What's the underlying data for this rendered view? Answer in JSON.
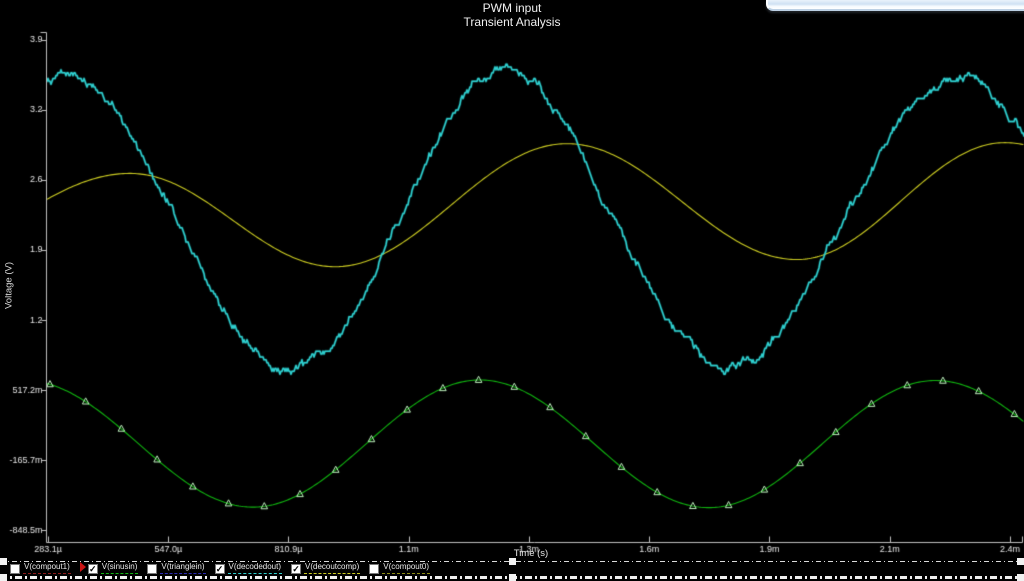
{
  "window": {
    "background": "#000000",
    "overlay_window": {
      "visible": true,
      "description": "bottom edge of an overlapping light-blue window, top-right corner"
    }
  },
  "chart_data": {
    "type": "line",
    "title": "PWM input",
    "subtitle": "Transient Analysis",
    "xlabel": "Time (s)",
    "ylabel": "Voltage (V)",
    "grid": false,
    "background": "#000000",
    "axis_color": "#c0c0c0",
    "tick_text_color": "#e6e6e6",
    "x_range_us": [
      280.9,
      2425.4
    ],
    "y_range_v": [
      -0.95,
      4.0
    ],
    "x_ticks": [
      {
        "t_us": 283.1,
        "label": "283.1µ"
      },
      {
        "t_us": 547.0,
        "label": "547.0µ"
      },
      {
        "t_us": 810.9,
        "label": "810.9µ"
      },
      {
        "t_us": 1074.9,
        "label": "1.1m"
      },
      {
        "t_us": 1338.8,
        "label": "1.3m"
      },
      {
        "t_us": 1602.8,
        "label": "1.6m"
      },
      {
        "t_us": 1866.7,
        "label": "1.9m"
      },
      {
        "t_us": 2130.6,
        "label": "2.1m"
      },
      {
        "t_us": 2394.6,
        "label": "2.4m"
      }
    ],
    "y_ticks": [
      {
        "v": 3.9314,
        "label": "3.9"
      },
      {
        "v": 3.2486,
        "label": "3.2"
      },
      {
        "v": 2.5657,
        "label": "2.6"
      },
      {
        "v": 1.8829,
        "label": "1.9"
      },
      {
        "v": 1.2,
        "label": "1.2"
      },
      {
        "v": 0.5172,
        "label": "517.2m"
      },
      {
        "v": -0.1657,
        "label": "-165.7m"
      },
      {
        "v": -0.8485,
        "label": "-848.5m"
      }
    ],
    "series": [
      {
        "name": "V(sinusin)",
        "visible": true,
        "style": "smooth",
        "color": "#10b410",
        "line_width": 1.1,
        "marker": "triangle-open",
        "marker_color": "#bdf0bd",
        "marker_start_us": 287,
        "marker_step_us": 78.4,
        "frequency_hz": 1000,
        "extrema_us_v": [
          [
            -269,
            -0.62
          ],
          [
            231,
            0.61
          ],
          [
            733,
            -0.625
          ],
          [
            1231,
            0.615
          ],
          [
            1733,
            -0.63
          ],
          [
            2231,
            0.61
          ],
          [
            2731,
            -0.62
          ]
        ]
      },
      {
        "name": "V(decoutcomp)",
        "visible": true,
        "style": "smooth",
        "color": "#cccc22",
        "line_width": 1.1,
        "frequency_hz": 1000,
        "extrema_us_v": [
          [
            -37,
            1.77
          ],
          [
            463,
            2.63
          ],
          [
            913,
            1.72
          ],
          [
            1422,
            2.92
          ],
          [
            1927,
            1.79
          ],
          [
            2383,
            2.93
          ],
          [
            2881,
            1.8
          ]
        ]
      },
      {
        "name": "V(decodedout)",
        "visible": true,
        "style": "noisy",
        "color": "#2fd0d0",
        "line_width": 1.5,
        "frequency_hz": 1000,
        "noise": {
          "seed": 1234,
          "amp": 0.05,
          "smooth": 0.88,
          "quant": 0.028,
          "jitter": 0.012
        },
        "extrema_us_v": [
          [
            -165,
            0.75
          ],
          [
            320,
            3.58
          ],
          [
            814,
            0.72
          ],
          [
            1286,
            3.62
          ],
          [
            1769,
            0.74
          ],
          [
            2285,
            3.55
          ],
          [
            2770,
            0.75
          ]
        ]
      }
    ]
  },
  "legend": {
    "items": [
      {
        "label": "V(compout1)",
        "checked": false,
        "selected": false,
        "color": "#8c1a1a"
      },
      {
        "label": "V(sinusin)",
        "checked": true,
        "selected": true,
        "color": "#10b410"
      },
      {
        "label": "V(trianglein)",
        "checked": false,
        "selected": false,
        "color": "#2a2ab4"
      },
      {
        "label": "V(decodedout)",
        "checked": true,
        "selected": false,
        "color": "#2fd0d0"
      },
      {
        "label": "V(decoutcomp)",
        "checked": true,
        "selected": false,
        "color": "#cccc22"
      },
      {
        "label": "V(compout0)",
        "checked": false,
        "selected": false,
        "color": "#8c8c14"
      }
    ],
    "check_glyph": "✓"
  }
}
